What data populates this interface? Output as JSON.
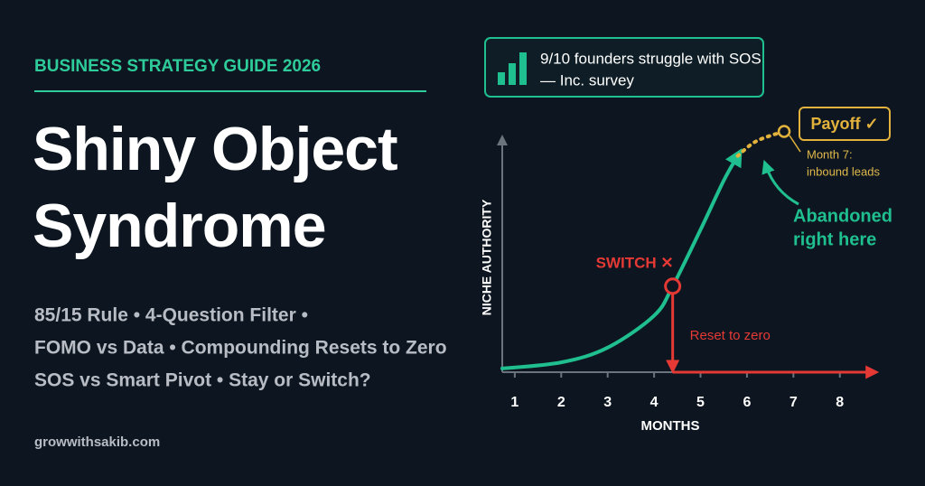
{
  "header": {
    "kicker": "BUSINESS STRATEGY GUIDE 2026",
    "title": [
      "Shiny Object",
      "Syndrome"
    ],
    "topics": [
      "85/15 Rule • 4-Question Filter •",
      "FOMO vs Data • Compounding Resets to Zero",
      "SOS vs Smart Pivot • Stay or Switch?"
    ],
    "site": "growwithsakib.com"
  },
  "callout": {
    "text": "9/10 founders struggle with SOS",
    "source": "— Inc. survey"
  },
  "chart_data": {
    "type": "line",
    "x_label": "MONTHS",
    "y_label": "NICHE AUTHORITY",
    "xlim": [
      0.73,
      8.9
    ],
    "ylim": [
      0,
      100
    ],
    "xticks": [
      1,
      2,
      3,
      4,
      5,
      6,
      7,
      8
    ],
    "series": [
      {
        "color": "#1fbf8f",
        "style": "solid",
        "x": [
          0.73,
          2,
          3,
          4,
          4.4,
          5,
          5.5,
          5.8
        ],
        "values": [
          1.5,
          4,
          10,
          23,
          35,
          58,
          78,
          88
        ]
      },
      {
        "color": "#e3b23c",
        "style": "dotted",
        "x": [
          5.8,
          6.2,
          6.8
        ],
        "values": [
          88,
          94,
          98
        ]
      }
    ],
    "switch": {
      "label": "SWITCH ✕",
      "color": "#e53935"
    },
    "reset": {
      "label": "Reset to zero",
      "color": "#e53935",
      "x": [
        4.4,
        8.7
      ],
      "values": [
        0,
        0
      ]
    },
    "payoff": {
      "label": "Payoff ✓",
      "note": [
        "Month 7:",
        "inbound leads"
      ]
    },
    "abandoned": [
      "Abandoned",
      "right here"
    ]
  }
}
